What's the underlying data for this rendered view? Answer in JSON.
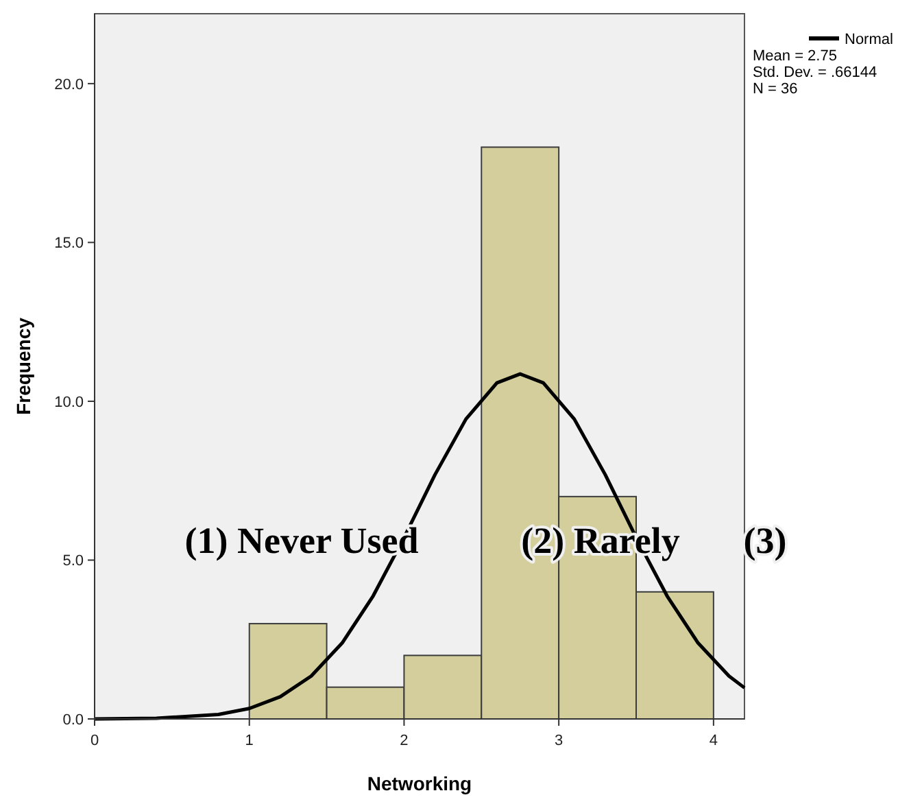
{
  "chart_data": {
    "type": "histogram",
    "xlabel": "Networking",
    "ylabel": "Frequency",
    "bins": [
      1,
      1.5,
      2,
      2.5,
      3,
      3.5,
      4
    ],
    "values": [
      3,
      1,
      2,
      18,
      7,
      4
    ],
    "color": "#d3ce9c",
    "series": [
      {
        "type": "line",
        "name": "Normal",
        "color": "#000000",
        "x": [
          0,
          0.4,
          0.8,
          1.0,
          1.2,
          1.4,
          1.6,
          1.8,
          2.0,
          2.2,
          2.4,
          2.6,
          2.75,
          2.9,
          3.1,
          3.3,
          3.5,
          3.7,
          3.9,
          4.1,
          4.2
        ],
        "values": [
          0.0,
          0.02,
          0.14,
          0.33,
          0.7,
          1.35,
          2.39,
          3.87,
          5.71,
          7.69,
          9.44,
          10.58,
          10.86,
          10.58,
          9.44,
          7.69,
          5.71,
          3.87,
          2.39,
          1.35,
          0.98
        ]
      }
    ],
    "xlim": [
      0,
      4.2
    ],
    "ylim": [
      0,
      22.2
    ],
    "xticks": [
      0,
      1,
      2,
      3,
      4
    ],
    "yticks": [
      {
        "value": 0,
        "label": "0.0"
      },
      {
        "value": 5,
        "label": "5.0"
      },
      {
        "value": 10,
        "label": "10.0"
      },
      {
        "value": 15,
        "label": "15.0"
      },
      {
        "value": 20,
        "label": "20.0"
      }
    ],
    "legend": "top right",
    "grid": false,
    "annotations": [
      "Mean = 2.75",
      "Std. Dev. = .66144",
      "N = 36",
      "(1) Never Used",
      "(2) Rarely",
      "(3)"
    ]
  }
}
